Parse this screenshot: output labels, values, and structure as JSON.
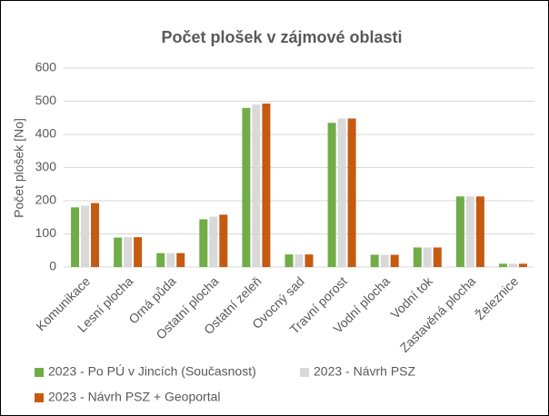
{
  "chart_data": {
    "type": "bar",
    "title": "Počet plošek v zájmové oblasti",
    "y_label": "Počet plošek [No]",
    "categories": [
      "Komunikace",
      "Lesní plocha",
      "Orná půda",
      "Ostatní plocha",
      "Ostatní zeleň",
      "Ovocný sad",
      "Travní porost",
      "Vodní plocha",
      "Vodní tok",
      "Zastavěná plocha",
      "Železnice"
    ],
    "series": [
      {
        "name": "2023 - Po PÚ v Jincích (Současnost)",
        "color": "#70ad47",
        "values": [
          180,
          89,
          42,
          144,
          480,
          38,
          435,
          37,
          59,
          213,
          10
        ]
      },
      {
        "name": "2023 - Návrh PSZ",
        "color": "#d9d9d9",
        "values": [
          185,
          90,
          42,
          152,
          490,
          38,
          448,
          37,
          59,
          213,
          10
        ]
      },
      {
        "name": "2023 - Návrh PSZ + Geoportal",
        "color": "#c55a11",
        "values": [
          193,
          90,
          42,
          158,
          493,
          38,
          448,
          37,
          59,
          213,
          10
        ]
      }
    ],
    "ylim": [
      0,
      600
    ],
    "yticks": [
      0,
      100,
      200,
      300,
      400,
      500,
      600
    ],
    "grid": true
  }
}
